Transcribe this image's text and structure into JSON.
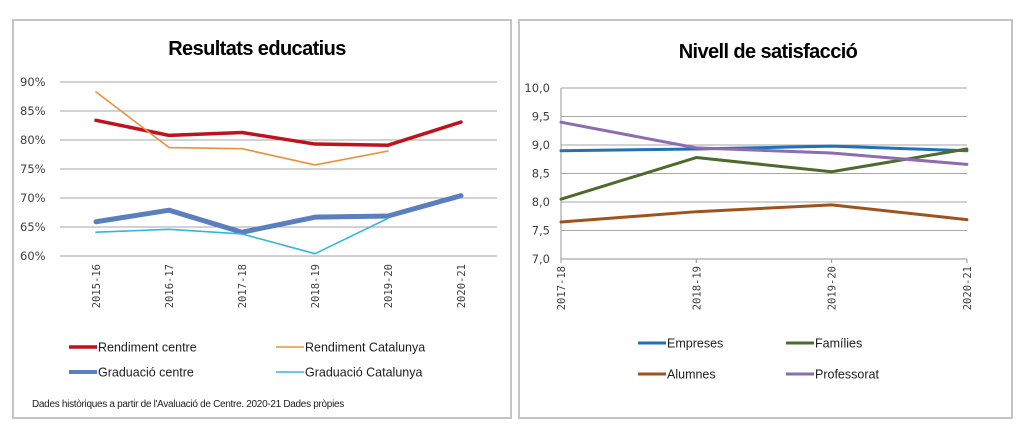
{
  "chart_data": [
    {
      "type": "line",
      "title": "Resultats educatius",
      "xlabel": "",
      "ylabel": "",
      "categories": [
        "2015-16",
        "2016-17",
        "2017-18",
        "2018-19",
        "2019-20",
        "2020-21"
      ],
      "ylim": [
        0.6,
        0.9
      ],
      "yticks": [
        0.6,
        0.65,
        0.7,
        0.75,
        0.8,
        0.85,
        0.9
      ],
      "ytick_labels": [
        "60%",
        "65%",
        "70%",
        "75%",
        "80%",
        "85%",
        "90%"
      ],
      "grid": true,
      "legend_position": "bottom",
      "series": [
        {
          "name": "Rendiment centre",
          "color": "#c0121c",
          "weight": "bold",
          "values": [
            0.834,
            0.808,
            0.813,
            0.793,
            0.791,
            0.831
          ]
        },
        {
          "name": "Rendiment Catalunya",
          "color": "#e8933c",
          "weight": "thin",
          "values": [
            0.883,
            0.787,
            0.785,
            0.757,
            0.781,
            null
          ]
        },
        {
          "name": "Graduació centre",
          "color": "#5a7fbf",
          "weight": "heavy",
          "values": [
            0.659,
            0.679,
            0.641,
            0.667,
            0.669,
            0.704
          ]
        },
        {
          "name": "Graduació Catalunya",
          "color": "#33b5e0",
          "weight": "thin",
          "values": [
            0.641,
            0.646,
            0.638,
            0.604,
            0.665,
            null
          ]
        }
      ],
      "footnote": "Dades històriques a partir de l'Avaluació de Centre. 2020-21 Dades pròpies"
    },
    {
      "type": "line",
      "title": "Nivell de satisfacció",
      "xlabel": "",
      "ylabel": "",
      "categories": [
        "2017-18",
        "2018-19",
        "2019-20",
        "2020-21"
      ],
      "ylim": [
        7.0,
        10.0
      ],
      "yticks": [
        7.0,
        7.5,
        8.0,
        8.5,
        9.0,
        9.5,
        10.0
      ],
      "ytick_labels": [
        "7,0",
        "7,5",
        "8,0",
        "8,5",
        "9,0",
        "9,5",
        "10,0"
      ],
      "grid": true,
      "legend_position": "bottom",
      "series": [
        {
          "name": "Empreses",
          "color": "#1f72b8",
          "values": [
            8.9,
            8.93,
            8.98,
            8.9
          ]
        },
        {
          "name": "Famílies",
          "color": "#4e6b2f",
          "values": [
            8.05,
            8.78,
            8.53,
            8.93
          ]
        },
        {
          "name": "Alumnes",
          "color": "#a0521d",
          "values": [
            7.65,
            7.83,
            7.95,
            7.69
          ]
        },
        {
          "name": "Professorat",
          "color": "#8f6bb0",
          "values": [
            9.4,
            8.95,
            8.86,
            8.66
          ]
        }
      ]
    }
  ]
}
